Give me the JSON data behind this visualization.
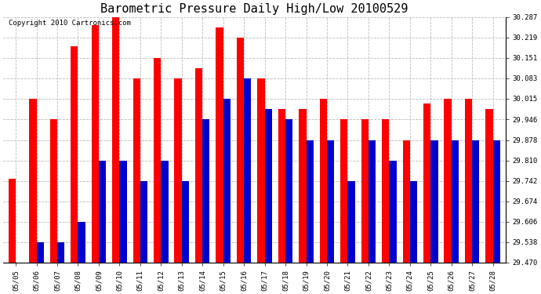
{
  "title": "Barometric Pressure Daily High/Low 20100529",
  "copyright": "Copyright 2010 Cartronics.com",
  "dates": [
    "05/05",
    "05/06",
    "05/07",
    "05/08",
    "05/09",
    "05/10",
    "05/11",
    "05/12",
    "05/13",
    "05/14",
    "05/15",
    "05/16",
    "05/17",
    "05/18",
    "05/19",
    "05/20",
    "05/21",
    "05/22",
    "05/23",
    "05/24",
    "05/25",
    "05/26",
    "05/27",
    "05/28"
  ],
  "highs": [
    29.748,
    30.015,
    29.946,
    30.19,
    30.26,
    30.287,
    30.083,
    30.151,
    30.083,
    30.117,
    30.253,
    30.219,
    30.083,
    29.98,
    29.98,
    30.015,
    29.946,
    29.946,
    29.946,
    29.878,
    30.0,
    30.015,
    30.015,
    29.98
  ],
  "lows": [
    29.47,
    29.538,
    29.538,
    29.606,
    29.81,
    29.81,
    29.742,
    29.81,
    29.742,
    29.946,
    30.015,
    30.083,
    29.98,
    29.946,
    29.878,
    29.878,
    29.742,
    29.878,
    29.81,
    29.742,
    29.878,
    29.878,
    29.878,
    29.878
  ],
  "high_color": "#ff0000",
  "low_color": "#0000cc",
  "bg_color": "#ffffff",
  "grid_color": "#bbbbbb",
  "ymin": 29.47,
  "ymax": 30.287,
  "yticks": [
    29.47,
    29.538,
    29.606,
    29.674,
    29.742,
    29.81,
    29.878,
    29.946,
    30.015,
    30.083,
    30.151,
    30.219,
    30.287
  ],
  "title_fontsize": 11,
  "copyright_fontsize": 6.5,
  "bar_width": 0.35
}
